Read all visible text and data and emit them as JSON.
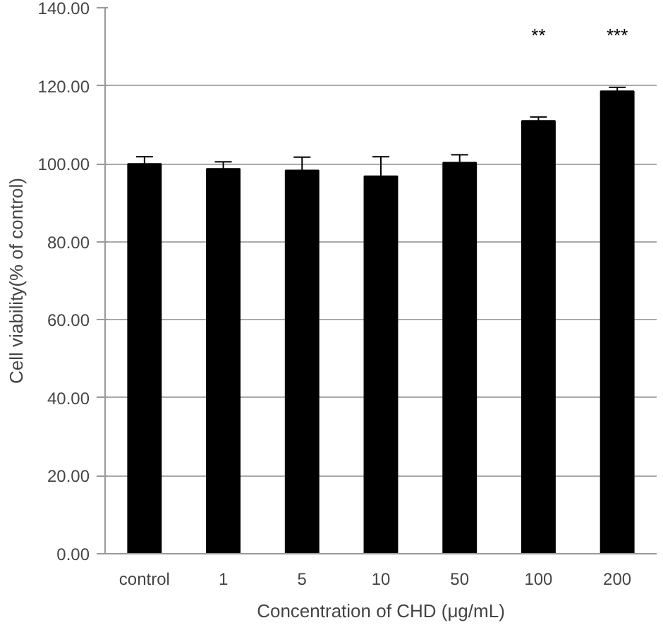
{
  "chart_data": {
    "type": "bar",
    "xlabel": "Concentration of CHD (μg/mL)",
    "ylabel": "Cell viability(% of control)",
    "categories": [
      "control",
      "1",
      "5",
      "10",
      "50",
      "100",
      "200"
    ],
    "values": [
      100.0,
      98.7,
      98.3,
      96.8,
      100.3,
      111.0,
      118.6
    ],
    "errors": [
      [
        100.0,
        101.8
      ],
      [
        98.7,
        100.5
      ],
      [
        98.3,
        101.7
      ],
      [
        96.8,
        101.8
      ],
      [
        100.3,
        102.3
      ],
      [
        111.0,
        112.0
      ],
      [
        118.6,
        119.6
      ]
    ],
    "color": "#000000",
    "ylim": [
      0,
      140
    ],
    "yticks": [
      {
        "value": 0,
        "label": "0.00"
      },
      {
        "value": 20,
        "label": "20.00"
      },
      {
        "value": 40,
        "label": "40.00"
      },
      {
        "value": 60,
        "label": "60.00"
      },
      {
        "value": 80,
        "label": "80.00"
      },
      {
        "value": 100,
        "label": "100.00"
      },
      {
        "value": 120,
        "label": "120.00"
      },
      {
        "value": 140,
        "label": "140.00"
      }
    ],
    "grid": "y",
    "annotations": [
      "**",
      "***"
    ]
  }
}
